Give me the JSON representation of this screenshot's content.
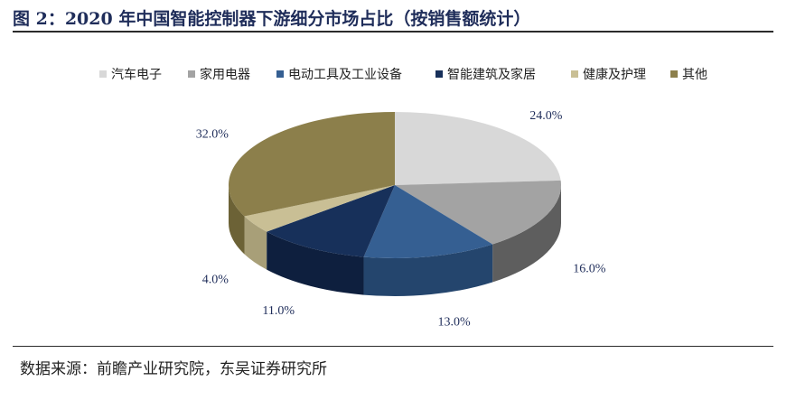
{
  "title": "图 2：2020 年中国智能控制器下游细分市场占比（按销售额统计）",
  "source": "数据来源：前瞻产业研究院，东吴证券研究所",
  "chart_data": {
    "type": "pie",
    "style": "3d",
    "legend_position": "top",
    "categories": [
      "汽车电子",
      "家用电器",
      "电动工具及工业设备",
      "智能建筑及家居",
      "健康及护理",
      "其他"
    ],
    "values": [
      24.0,
      16.0,
      13.0,
      11.0,
      4.0,
      32.0
    ],
    "labels": [
      "24.0%",
      "16.0%",
      "13.0%",
      "11.0%",
      "4.0%",
      "32.0%"
    ],
    "colors": [
      "#d8d8d8",
      "#a3a3a3",
      "#355f92",
      "#17305a",
      "#c9bf95",
      "#8c7f4b"
    ],
    "side_colors": [
      "#b7b7b7",
      "#5e5e5e",
      "#24456d",
      "#0e1f3e",
      "#a89f78",
      "#6c6236"
    ]
  }
}
